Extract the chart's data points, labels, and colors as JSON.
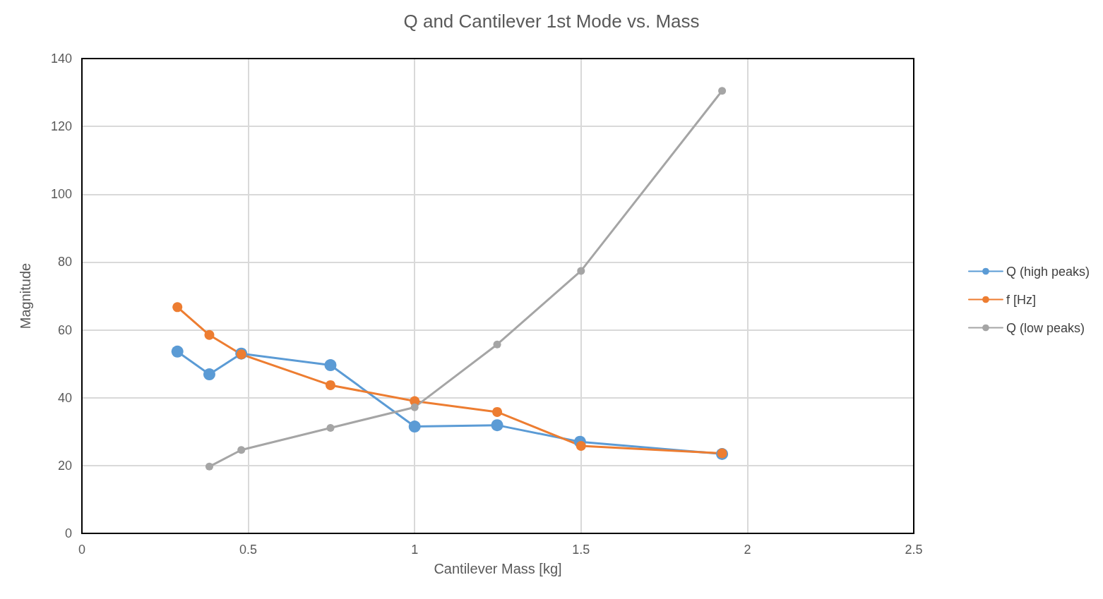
{
  "chart_data": {
    "type": "line",
    "title": "Q and Cantilever 1st Mode vs. Mass",
    "xlabel": "Cantilever Mass [kg]",
    "ylabel": "Magnitude",
    "xlim": [
      0,
      2.5
    ],
    "xticks": [
      0,
      0.5,
      1,
      1.5,
      2,
      2.5
    ],
    "ylim": [
      0,
      140
    ],
    "yticks": [
      0,
      20,
      40,
      60,
      80,
      100,
      120,
      140
    ],
    "grid": true,
    "legend": "right",
    "marker": "circle",
    "line_style": "solid",
    "series": [
      {
        "name": "Q (high peaks)",
        "color": "#5b9bd5",
        "x": [
          0.287,
          0.383,
          0.479,
          0.747,
          1.0,
          1.248,
          1.497,
          1.924
        ],
        "values": [
          53.6,
          46.9,
          53.0,
          49.6,
          31.5,
          31.9,
          27.0,
          23.4
        ]
      },
      {
        "name": "f [Hz]",
        "color": "#ed7d31",
        "x": [
          0.287,
          0.383,
          0.479,
          0.747,
          1.0,
          1.248,
          1.5,
          1.924
        ],
        "values": [
          66.7,
          58.5,
          52.8,
          43.7,
          39.0,
          35.8,
          25.8,
          23.6
        ]
      },
      {
        "name": "Q (low peaks)",
        "color": "#a5a5a5",
        "x": [
          0.383,
          0.479,
          0.747,
          1.0,
          1.248,
          1.5,
          1.924
        ],
        "values": [
          19.7,
          24.6,
          31.1,
          37.2,
          55.7,
          77.4,
          130.5
        ]
      }
    ]
  }
}
